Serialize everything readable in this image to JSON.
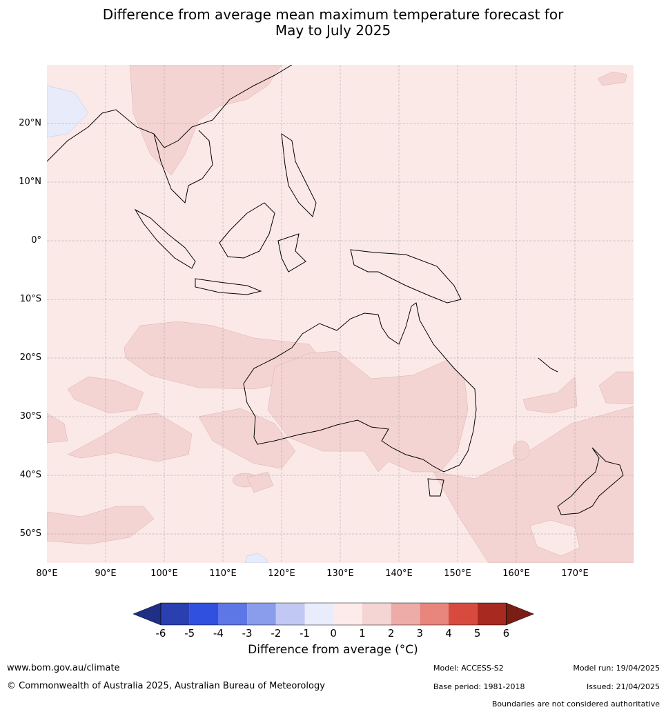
{
  "title_line1": "Difference from average mean maximum temperature forecast for",
  "title_line2": "May to July 2025",
  "lon_ticks": [
    "80°E",
    "90°E",
    "100°E",
    "110°E",
    "120°E",
    "130°E",
    "140°E",
    "150°E",
    "160°E",
    "170°E"
  ],
  "lat_ticks": [
    "20°N",
    "10°N",
    "0°",
    "10°S",
    "20°S",
    "30°S",
    "40°S",
    "50°S"
  ],
  "colorbar": {
    "tick_labels": [
      "-6",
      "-5",
      "-4",
      "-3",
      "-2",
      "-1",
      "0",
      "1",
      "2",
      "3",
      "4",
      "5",
      "6"
    ],
    "colors": [
      "#1f2f85",
      "#2a3fb0",
      "#3050e0",
      "#5e77e6",
      "#8a9cec",
      "#c2c8f4",
      "#e8ecfb",
      "#fcebea",
      "#f5d5d3",
      "#eeaca8",
      "#e8857d",
      "#d94a3e",
      "#a8291f",
      "#7a1d14"
    ],
    "label": "Difference from average (°C)"
  },
  "footer": {
    "website": "www.bom.gov.au/climate",
    "copyright": "© Commonwealth of Australia 2025, Australian Bureau of Meteorology",
    "model": "Model: ACCESS-S2",
    "base_period": "Base period: 1981-2018",
    "model_run": "Model run: 19/04/2025",
    "issued": "Issued: 21/04/2025",
    "disclaimer": "Boundaries are not considered authoritative"
  },
  "map_colors": {
    "background": "#fbe9e8",
    "warm": "#f4d4d2",
    "cool": "#e7ebfa",
    "land_outline": "#000000",
    "grid": "#8a8a8a"
  }
}
